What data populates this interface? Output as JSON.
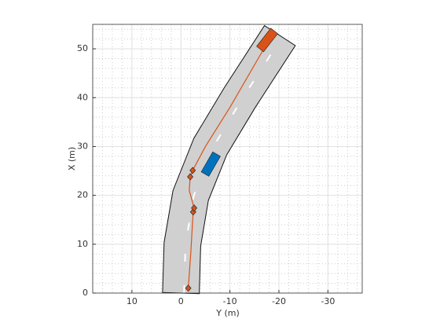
{
  "chart_data": {
    "type": "driving-scenario",
    "xlabel": "Y (m)",
    "ylabel": "X (m)",
    "xlim": [
      18,
      -37
    ],
    "ylim": [
      0,
      55
    ],
    "xticks": [
      10,
      0,
      -10,
      -20,
      -30
    ],
    "yticks": [
      0,
      10,
      20,
      30,
      40,
      50
    ],
    "grid": true,
    "road": {
      "width": 7.5,
      "color": "#d0d0d0",
      "x": [
        0,
        -0.3,
        -2,
        -6,
        -12,
        -20.2
      ],
      "y": [
        0,
        10,
        20,
        30,
        40,
        52.7
      ]
    },
    "trajectory": {
      "color": "#d95319",
      "x": [
        -1.5,
        -2,
        -2.5,
        -2.7,
        -1.7,
        -1.9,
        -2.4,
        -5,
        -10,
        -17.5
      ],
      "y": [
        1,
        8,
        16.6,
        17.4,
        21,
        23.8,
        25.1,
        30,
        38,
        51
      ]
    },
    "waypoints": {
      "x": [
        -1.5,
        -2.5,
        -2.7,
        -1.9,
        -2.4
      ],
      "y": [
        1,
        16.6,
        17.4,
        23.8,
        25.1
      ]
    },
    "vehicles": [
      {
        "color": "#0072bd",
        "x": -6.1,
        "y": 26.4,
        "yaw": 30,
        "length": 4.7,
        "width": 1.8
      },
      {
        "color": "#d95319",
        "x": -17.6,
        "y": 51.8,
        "yaw": 38,
        "length": 4.7,
        "width": 1.8
      }
    ]
  }
}
